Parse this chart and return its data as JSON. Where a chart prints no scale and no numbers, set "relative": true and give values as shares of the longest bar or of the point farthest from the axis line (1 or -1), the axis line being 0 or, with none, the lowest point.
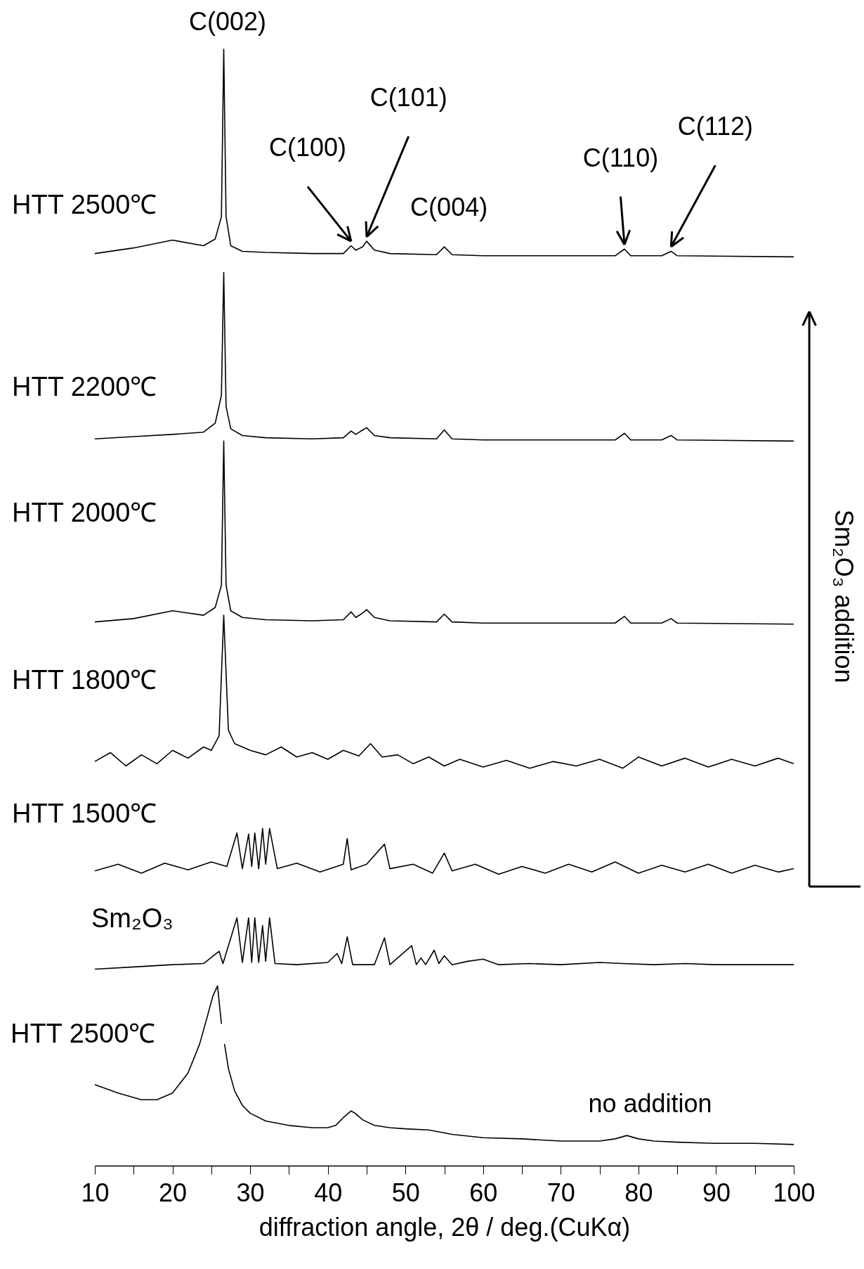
{
  "chart_data": {
    "type": "line",
    "relative": true,
    "grid": false,
    "marker": "none",
    "line_style": "solid",
    "xlabel": "diffraction angle,  2θ  /  deg.(CuKα)",
    "xlim": [
      10,
      100
    ],
    "xticks": [
      10,
      {
        "value": 15,
        "label": null
      },
      20,
      {
        "value": 25,
        "label": null
      },
      30,
      {
        "value": 35,
        "label": null
      },
      40,
      {
        "value": 45,
        "label": null
      },
      50,
      {
        "value": 55,
        "label": null
      },
      60,
      {
        "value": 65,
        "label": null
      },
      70,
      {
        "value": 75,
        "label": null
      },
      80,
      {
        "value": 85,
        "label": null
      },
      90,
      {
        "value": 95,
        "label": null
      },
      100
    ],
    "tick_labels": "x",
    "series": [
      {
        "name": "HTT 2500℃",
        "color": "#000000",
        "x": [
          10,
          15,
          20,
          24,
          25.5,
          26.3,
          26.6,
          26.9,
          27.5,
          29,
          32,
          38,
          42,
          43,
          43.6,
          44.5,
          45,
          46,
          48,
          54,
          55,
          56,
          60,
          70,
          77,
          78.2,
          79,
          83,
          84.2,
          85,
          100
        ],
        "values": [
          0.817,
          0.822,
          0.829,
          0.824,
          0.83,
          0.85,
          1.0,
          0.85,
          0.824,
          0.819,
          0.818,
          0.817,
          0.817,
          0.824,
          0.82,
          0.823,
          0.828,
          0.82,
          0.817,
          0.816,
          0.823,
          0.816,
          0.815,
          0.815,
          0.815,
          0.821,
          0.815,
          0.815,
          0.819,
          0.815,
          0.814
        ]
      },
      {
        "name": "HTT 2200℃",
        "color": "#000000",
        "x": [
          10,
          15,
          20,
          24,
          25.5,
          26.3,
          26.6,
          26.9,
          27.5,
          29,
          32,
          38,
          42,
          43,
          43.6,
          44.5,
          45,
          46,
          48,
          54,
          55,
          56,
          60,
          70,
          77,
          78.2,
          79,
          83,
          84.2,
          85,
          100
        ],
        "values": [
          0.651,
          0.653,
          0.655,
          0.657,
          0.665,
          0.69,
          0.8,
          0.68,
          0.66,
          0.654,
          0.652,
          0.651,
          0.652,
          0.658,
          0.655,
          0.659,
          0.661,
          0.654,
          0.652,
          0.651,
          0.659,
          0.651,
          0.65,
          0.65,
          0.65,
          0.656,
          0.65,
          0.65,
          0.654,
          0.65,
          0.649
        ]
      },
      {
        "name": "HTT 2000℃",
        "color": "#000000",
        "x": [
          10,
          15,
          20,
          24,
          25.5,
          26.3,
          26.6,
          26.9,
          27.5,
          29,
          32,
          38,
          42,
          43,
          43.6,
          44.5,
          45,
          46,
          48,
          54,
          55,
          56,
          60,
          70,
          77,
          78.2,
          79,
          83,
          84.2,
          85,
          100
        ],
        "values": [
          0.487,
          0.49,
          0.497,
          0.493,
          0.5,
          0.52,
          0.649,
          0.52,
          0.497,
          0.491,
          0.489,
          0.488,
          0.489,
          0.496,
          0.491,
          0.495,
          0.498,
          0.491,
          0.488,
          0.487,
          0.494,
          0.487,
          0.486,
          0.486,
          0.486,
          0.492,
          0.486,
          0.486,
          0.49,
          0.486,
          0.485
        ]
      },
      {
        "name": "HTT 1800℃",
        "color": "#000000",
        "x": [
          10,
          12,
          14,
          16,
          18,
          20,
          22,
          24,
          25,
          26,
          26.6,
          27.2,
          28,
          30,
          32,
          34,
          36,
          38,
          40,
          42,
          44,
          45.5,
          47,
          49,
          51,
          53,
          55,
          57,
          60,
          63,
          66,
          69,
          72,
          75,
          78,
          80,
          83,
          86,
          89,
          92,
          95,
          98,
          100
        ],
        "values": [
          0.362,
          0.37,
          0.358,
          0.368,
          0.36,
          0.372,
          0.365,
          0.375,
          0.372,
          0.385,
          0.493,
          0.39,
          0.378,
          0.372,
          0.368,
          0.375,
          0.366,
          0.37,
          0.364,
          0.372,
          0.367,
          0.378,
          0.366,
          0.368,
          0.36,
          0.366,
          0.358,
          0.364,
          0.357,
          0.363,
          0.356,
          0.362,
          0.358,
          0.364,
          0.356,
          0.366,
          0.358,
          0.365,
          0.357,
          0.364,
          0.358,
          0.365,
          0.36
        ]
      },
      {
        "name": "HTT 1500℃",
        "color": "#000000",
        "x": [
          10,
          13,
          16,
          19,
          22,
          25,
          27,
          28.3,
          29,
          29.8,
          30.2,
          30.6,
          31.1,
          31.6,
          32,
          32.5,
          33.5,
          36,
          39,
          42,
          42.5,
          43,
          45,
          47.3,
          48,
          51,
          53.5,
          55,
          56,
          59,
          62,
          65,
          68,
          71,
          74,
          77,
          80,
          83,
          86,
          89,
          92,
          95,
          98,
          100
        ],
        "values": [
          0.264,
          0.27,
          0.262,
          0.271,
          0.265,
          0.272,
          0.268,
          0.298,
          0.266,
          0.297,
          0.268,
          0.298,
          0.266,
          0.302,
          0.27,
          0.302,
          0.266,
          0.271,
          0.263,
          0.27,
          0.293,
          0.265,
          0.27,
          0.288,
          0.266,
          0.27,
          0.262,
          0.28,
          0.264,
          0.27,
          0.261,
          0.268,
          0.262,
          0.27,
          0.263,
          0.272,
          0.262,
          0.269,
          0.263,
          0.27,
          0.262,
          0.269,
          0.263,
          0.266
        ]
      },
      {
        "name": "Sm₂O₃",
        "color": "#000000",
        "x": [
          10,
          15,
          20,
          24,
          26,
          26.5,
          28.3,
          29,
          29.8,
          30.2,
          30.6,
          31.1,
          31.6,
          32,
          32.5,
          33.2,
          36,
          40,
          41.2,
          41.8,
          42.5,
          43.2,
          46,
          47.3,
          48,
          50.8,
          51.4,
          52,
          52.6,
          53.7,
          54.3,
          55,
          56,
          58,
          60,
          62,
          66,
          70,
          75,
          78,
          82,
          86,
          90,
          95,
          100
        ],
        "values": [
          0.176,
          0.178,
          0.18,
          0.181,
          0.192,
          0.181,
          0.222,
          0.182,
          0.222,
          0.182,
          0.222,
          0.182,
          0.215,
          0.183,
          0.222,
          0.181,
          0.18,
          0.182,
          0.19,
          0.181,
          0.205,
          0.18,
          0.18,
          0.204,
          0.18,
          0.197,
          0.18,
          0.186,
          0.18,
          0.193,
          0.181,
          0.188,
          0.18,
          0.183,
          0.185,
          0.18,
          0.181,
          0.18,
          0.182,
          0.181,
          0.18,
          0.181,
          0.18,
          0.18,
          0.18
        ]
      },
      {
        "name": "HTT 2500℃",
        "color": "#000000",
        "x": [
          10,
          13,
          16,
          18,
          20,
          22,
          23.5,
          24.5,
          25.2,
          25.8,
          26.3,
          26.5,
          26.7,
          27.2,
          28,
          29,
          30,
          32,
          35,
          38,
          40,
          41,
          42,
          43,
          43.5,
          44.5,
          46,
          48,
          50,
          53,
          56,
          60,
          65,
          70,
          75,
          77,
          78.5,
          80,
          82,
          85,
          90,
          95,
          100
        ],
        "values": [
          0.0725,
          0.065,
          0.059,
          0.059,
          0.065,
          0.083,
          0.109,
          0.134,
          0.152,
          0.161,
          0.127,
          null,
          0.109,
          0.087,
          0.067,
          0.054,
          0.047,
          0.04,
          0.036,
          0.034,
          0.034,
          0.036,
          0.043,
          0.049,
          0.047,
          0.041,
          0.036,
          0.034,
          0.033,
          0.032,
          0.028,
          0.025,
          0.024,
          0.022,
          0.022,
          0.024,
          0.027,
          0.024,
          0.022,
          0.021,
          0.02,
          0.02,
          0.019
        ]
      }
    ],
    "annotations": [
      {
        "text": "C(002)",
        "x": 26.6,
        "y": 1.0
      },
      {
        "text": "C(100)",
        "x": 43,
        "y": 0.824
      },
      {
        "text": "C(101)",
        "x": 45,
        "y": 0.828
      },
      {
        "text": "C(004)",
        "x": 55,
        "y": 0.823
      },
      {
        "text": "C(110)",
        "x": 78.2,
        "y": 0.821
      },
      {
        "text": "C(112)",
        "x": 84.2,
        "y": 0.819
      },
      "no addition",
      "Sm₂O₃ addition"
    ]
  }
}
